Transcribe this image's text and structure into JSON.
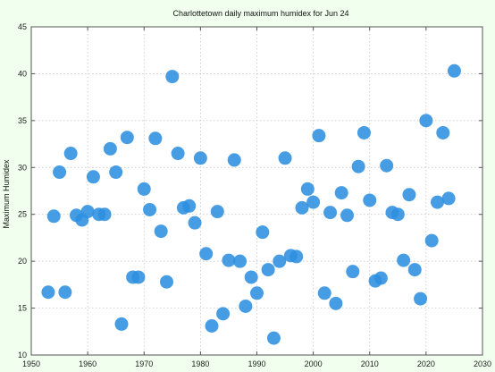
{
  "chart_data": {
    "type": "scatter",
    "title": "Charlottetown daily maximum humidex for Jun 24",
    "xlabel": "",
    "ylabel": "Maximum Humidex",
    "xlim": [
      1950,
      2030
    ],
    "ylim": [
      10,
      45
    ],
    "x_ticks": [
      1950,
      1960,
      1970,
      1980,
      1990,
      2000,
      2010,
      2020,
      2030
    ],
    "y_ticks": [
      10,
      15,
      20,
      25,
      30,
      35,
      40,
      45
    ],
    "grid": true,
    "point_color": "#2d8fe0",
    "points": [
      [
        1953,
        16.7
      ],
      [
        1954,
        24.8
      ],
      [
        1955,
        29.5
      ],
      [
        1956,
        16.7
      ],
      [
        1957,
        31.5
      ],
      [
        1958,
        24.9
      ],
      [
        1959,
        24.4
      ],
      [
        1960,
        25.3
      ],
      [
        1961,
        29.0
      ],
      [
        1962,
        25.0
      ],
      [
        1963,
        25.0
      ],
      [
        1964,
        32.0
      ],
      [
        1965,
        29.5
      ],
      [
        1966,
        13.3
      ],
      [
        1967,
        33.2
      ],
      [
        1968,
        18.3
      ],
      [
        1969,
        18.3
      ],
      [
        1970,
        27.7
      ],
      [
        1971,
        25.5
      ],
      [
        1972,
        33.1
      ],
      [
        1973,
        23.2
      ],
      [
        1974,
        17.8
      ],
      [
        1975,
        39.7
      ],
      [
        1976,
        31.5
      ],
      [
        1977,
        25.7
      ],
      [
        1978,
        25.9
      ],
      [
        1979,
        24.1
      ],
      [
        1980,
        31.0
      ],
      [
        1981,
        20.8
      ],
      [
        1982,
        13.1
      ],
      [
        1983,
        25.3
      ],
      [
        1984,
        14.4
      ],
      [
        1985,
        20.1
      ],
      [
        1986,
        30.8
      ],
      [
        1987,
        20.0
      ],
      [
        1988,
        15.2
      ],
      [
        1989,
        18.3
      ],
      [
        1990,
        16.6
      ],
      [
        1991,
        23.1
      ],
      [
        1992,
        19.1
      ],
      [
        1993,
        11.8
      ],
      [
        1994,
        20.0
      ],
      [
        1995,
        31.0
      ],
      [
        1996,
        20.6
      ],
      [
        1997,
        20.5
      ],
      [
        1998,
        25.7
      ],
      [
        1999,
        27.7
      ],
      [
        2000,
        26.3
      ],
      [
        2001,
        33.4
      ],
      [
        2002,
        16.6
      ],
      [
        2003,
        25.2
      ],
      [
        2004,
        15.5
      ],
      [
        2005,
        27.3
      ],
      [
        2006,
        24.9
      ],
      [
        2007,
        18.9
      ],
      [
        2008,
        30.1
      ],
      [
        2009,
        33.7
      ],
      [
        2010,
        26.5
      ],
      [
        2011,
        17.9
      ],
      [
        2012,
        18.2
      ],
      [
        2013,
        30.2
      ],
      [
        2014,
        25.2
      ],
      [
        2015,
        25.0
      ],
      [
        2016,
        20.1
      ],
      [
        2017,
        27.1
      ],
      [
        2018,
        19.1
      ],
      [
        2019,
        16.0
      ],
      [
        2020,
        35.0
      ],
      [
        2021,
        22.2
      ],
      [
        2022,
        26.3
      ],
      [
        2023,
        33.7
      ],
      [
        2024,
        26.7
      ],
      [
        2025,
        40.3
      ]
    ]
  }
}
